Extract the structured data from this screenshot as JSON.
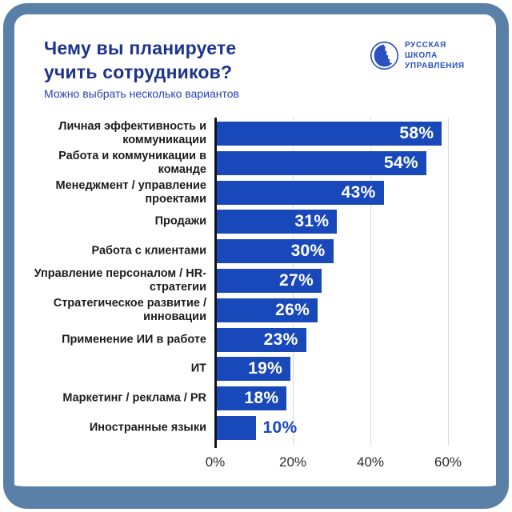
{
  "theme": {
    "background": "#ffffff",
    "frame": "#5b80a8",
    "title": "#1e338f",
    "subtitle": "#2443b5",
    "logo": "#2b50c0",
    "bar": "#1848b9",
    "grid": "#d9d9d9",
    "axis": "#15151a",
    "label": "#1c1c1c",
    "value_inside": "#ffffff",
    "value_outside": "#1848b9",
    "tick": "#2b2b2b"
  },
  "header": {
    "title": "Чему вы планируете учить сотрудников?",
    "subtitle": "Можно выбрать несколько вариантов"
  },
  "logo": {
    "lines": [
      "РУССКАЯ",
      "ШКОЛА",
      "УПРАВЛЕНИЯ"
    ]
  },
  "chart_data": {
    "type": "bar",
    "orientation": "horizontal",
    "title": "Чему вы планируете учить сотрудников?",
    "subtitle": "Можно выбрать несколько вариантов",
    "categories": [
      "Личная эффективность и коммуникации",
      "Работа и коммуникации в команде",
      "Менеджмент / управление проектами",
      "Продажи",
      "Работа с клиентами",
      "Управление персоналом / HR-стратегии",
      "Стратегическое развитие / инновации",
      "Применение ИИ в работе",
      "ИТ",
      "Маркетинг / реклама / PR",
      "Иностранные языки"
    ],
    "values": [
      58,
      54,
      43,
      31,
      30,
      27,
      26,
      23,
      19,
      18,
      10
    ],
    "value_suffix": "%",
    "x_ticks": [
      "0%",
      "20%",
      "40%",
      "60%"
    ],
    "x_tick_values": [
      0,
      20,
      40,
      60
    ],
    "xlim": [
      0,
      70
    ],
    "grid": true,
    "legend": "none",
    "value_labels": "inside-right, outside for smallest bar"
  }
}
